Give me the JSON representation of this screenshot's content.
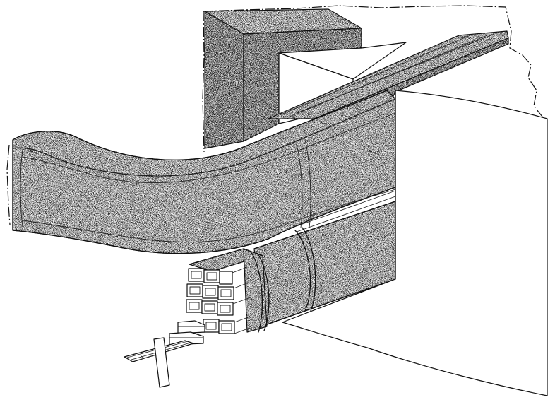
{
  "figure": {
    "colors": {
      "line": "#111111",
      "stipple_light": "#efefef",
      "stipple_dark": "#d8d8d8",
      "background": "#ffffff"
    }
  }
}
